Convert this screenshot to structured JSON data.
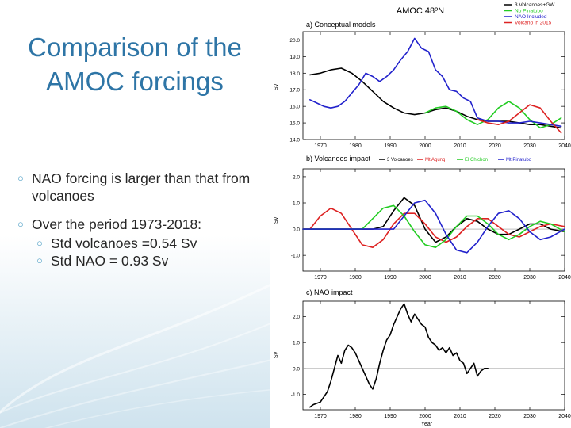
{
  "slide": {
    "title_line1": "Comparison of the",
    "title_line2": "AMOC forcings",
    "bullets": [
      {
        "text": "NAO forcing is larger than that from volcanoes"
      },
      {
        "text": "Over the period 1973-2018:"
      }
    ],
    "sub_bullets": [
      {
        "text": "Std volcanoes =0.54 Sv"
      },
      {
        "text": "Std NAO = 0.93 Sv"
      }
    ]
  },
  "figure": {
    "title": "AMOC 48ºN",
    "xlabel": "Year",
    "legend": [
      {
        "label": "3 Volcanoes+GW",
        "color": "#000000"
      },
      {
        "label": "No Pinatubo",
        "color": "#22cc22"
      },
      {
        "label": "NAO Included",
        "color": "#2222cc"
      },
      {
        "label": "Volcano in 2015",
        "color": "#dd2222"
      }
    ],
    "panel_b_legend": [
      {
        "label": "3 Volcanoes",
        "color": "#000000"
      },
      {
        "label": "Mt Agung",
        "color": "#dd2222"
      },
      {
        "label": "El Chichon",
        "color": "#22cc22"
      },
      {
        "label": "Mt Pinatubo",
        "color": "#2222cc"
      }
    ]
  },
  "chart_data": [
    {
      "type": "line",
      "title": "a) Conceptual models",
      "xlabel": "",
      "ylabel": "Sv",
      "xlim": [
        1965,
        2040
      ],
      "ylim": [
        14.0,
        20.5
      ],
      "xticks": [
        "1970",
        "1980",
        "1990",
        "2000",
        "2010",
        "2020",
        "2030",
        "2040"
      ],
      "yticks": [
        "14.0",
        "15.0",
        "16.0",
        "17.0",
        "18.0",
        "19.0",
        "20.0"
      ],
      "series": [
        {
          "name": "3 Volcanoes+GW",
          "color": "#000000",
          "x": [
            1967,
            1970,
            1973,
            1976,
            1979,
            1982,
            1985,
            1988,
            1991,
            1994,
            1997,
            2000,
            2003,
            2006,
            2009,
            2012,
            2015,
            2018,
            2021,
            2024,
            2027,
            2030,
            2033,
            2036,
            2039
          ],
          "y": [
            17.9,
            18.0,
            18.2,
            18.3,
            18.0,
            17.5,
            16.9,
            16.3,
            15.9,
            15.6,
            15.5,
            15.6,
            15.8,
            15.9,
            15.7,
            15.4,
            15.2,
            15.1,
            15.1,
            15.1,
            15.0,
            14.9,
            14.9,
            14.8,
            14.7
          ]
        },
        {
          "name": "No Pinatubo",
          "color": "#22cc22",
          "x": [
            2000,
            2003,
            2006,
            2009,
            2012,
            2015,
            2018,
            2021,
            2024,
            2027,
            2030,
            2033,
            2036,
            2039
          ],
          "y": [
            15.6,
            15.9,
            16.0,
            15.7,
            15.2,
            14.9,
            15.2,
            15.9,
            16.3,
            15.9,
            15.2,
            14.7,
            14.9,
            15.3
          ]
        },
        {
          "name": "NAO Included",
          "color": "#2222cc",
          "x": [
            1967,
            1969,
            1971,
            1973,
            1975,
            1977,
            1979,
            1981,
            1983,
            1985,
            1987,
            1989,
            1991,
            1993,
            1995,
            1997,
            1999,
            2001,
            2003,
            2005,
            2007,
            2009,
            2011,
            2013,
            2015,
            2018,
            2021,
            2024,
            2027,
            2030,
            2033,
            2036,
            2039
          ],
          "y": [
            16.4,
            16.2,
            16.0,
            15.9,
            16.0,
            16.3,
            16.8,
            17.3,
            18.0,
            17.8,
            17.5,
            17.8,
            18.2,
            18.8,
            19.3,
            20.1,
            19.5,
            19.3,
            18.2,
            17.8,
            17.0,
            16.9,
            16.5,
            16.3,
            15.3,
            15.1,
            15.1,
            15.0,
            15.0,
            15.1,
            15.0,
            14.9,
            14.8
          ]
        },
        {
          "name": "Volcano in 2015",
          "color": "#dd2222",
          "x": [
            2015,
            2018,
            2021,
            2024,
            2027,
            2030,
            2033,
            2036,
            2039
          ],
          "y": [
            15.2,
            15.0,
            14.9,
            15.1,
            15.6,
            16.1,
            15.9,
            15.1,
            14.4
          ]
        }
      ]
    },
    {
      "type": "line",
      "title": "b) Volcanoes impact",
      "xlabel": "",
      "ylabel": "Sv",
      "xlim": [
        1965,
        2040
      ],
      "ylim": [
        -1.6,
        2.3
      ],
      "xticks": [
        "1970",
        "1980",
        "1990",
        "2000",
        "2010",
        "2020",
        "2030",
        "2040"
      ],
      "yticks": [
        "-1.0",
        "0.0",
        "1.0",
        "2.0"
      ],
      "series": [
        {
          "name": "3 Volcanoes",
          "color": "#000000",
          "x": [
            1965,
            1985,
            1988,
            1991,
            1994,
            1997,
            2000,
            2003,
            2006,
            2009,
            2012,
            2015,
            2018,
            2021,
            2024,
            2027,
            2030,
            2033,
            2036,
            2040
          ],
          "y": [
            0.0,
            0.0,
            0.1,
            0.7,
            1.2,
            0.9,
            0.0,
            -0.5,
            -0.3,
            0.1,
            0.4,
            0.3,
            0.0,
            -0.2,
            -0.2,
            0.0,
            0.2,
            0.2,
            0.0,
            -0.1
          ]
        },
        {
          "name": "Mt Agung",
          "color": "#dd2222",
          "x": [
            1965,
            1967,
            1970,
            1973,
            1976,
            1979,
            1982,
            1985,
            1988,
            1991,
            1994,
            1997,
            2000,
            2003,
            2006,
            2009,
            2012,
            2015,
            2018,
            2021,
            2024,
            2027,
            2030,
            2033,
            2036,
            2040
          ],
          "y": [
            0.0,
            0.0,
            0.5,
            0.8,
            0.6,
            0.0,
            -0.6,
            -0.7,
            -0.4,
            0.2,
            0.6,
            0.6,
            0.2,
            -0.3,
            -0.5,
            -0.3,
            0.1,
            0.4,
            0.4,
            0.1,
            -0.2,
            -0.3,
            -0.1,
            0.1,
            0.2,
            0.1
          ]
        },
        {
          "name": "El Chichon",
          "color": "#22cc22",
          "x": [
            1965,
            1982,
            1985,
            1988,
            1991,
            1994,
            1997,
            2000,
            2003,
            2006,
            2009,
            2012,
            2015,
            2018,
            2021,
            2024,
            2027,
            2030,
            2033,
            2036,
            2040
          ],
          "y": [
            0.0,
            0.0,
            0.4,
            0.8,
            0.9,
            0.5,
            -0.1,
            -0.6,
            -0.7,
            -0.4,
            0.1,
            0.5,
            0.5,
            0.2,
            -0.2,
            -0.4,
            -0.2,
            0.1,
            0.3,
            0.2,
            -0.1
          ]
        },
        {
          "name": "Mt Pinatubo",
          "color": "#2222cc",
          "x": [
            1965,
            1991,
            1994,
            1997,
            2000,
            2003,
            2006,
            2009,
            2012,
            2015,
            2018,
            2021,
            2024,
            2027,
            2030,
            2033,
            2036,
            2040
          ],
          "y": [
            0.0,
            0.0,
            0.5,
            1.0,
            1.1,
            0.6,
            -0.2,
            -0.8,
            -0.9,
            -0.5,
            0.1,
            0.6,
            0.7,
            0.4,
            -0.1,
            -0.4,
            -0.3,
            0.0
          ]
        }
      ]
    },
    {
      "type": "line",
      "title": "c) NAO impact",
      "xlabel": "Year",
      "ylabel": "Sv",
      "xlim": [
        1965,
        2040
      ],
      "ylim": [
        -1.6,
        2.6
      ],
      "xticks": [
        "1970",
        "1980",
        "1990",
        "2000",
        "2010",
        "2020",
        "2030",
        "2040"
      ],
      "yticks": [
        "-1.0",
        "0.0",
        "1.0",
        "2.0"
      ],
      "series": [
        {
          "name": "NAO",
          "color": "#000000",
          "x": [
            1967,
            1968,
            1970,
            1972,
            1973,
            1974,
            1975,
            1976,
            1977,
            1978,
            1979,
            1980,
            1981,
            1982,
            1983,
            1984,
            1985,
            1986,
            1987,
            1988,
            1989,
            1990,
            1991,
            1992,
            1993,
            1994,
            1995,
            1996,
            1997,
            1998,
            1999,
            2000,
            2001,
            2002,
            2003,
            2004,
            2005,
            2006,
            2007,
            2008,
            2009,
            2010,
            2011,
            2012,
            2013,
            2014,
            2015,
            2016,
            2017,
            2018
          ],
          "y": [
            -1.5,
            -1.4,
            -1.3,
            -0.9,
            -0.5,
            0.0,
            0.5,
            0.2,
            0.7,
            0.9,
            0.8,
            0.6,
            0.3,
            0.0,
            -0.3,
            -0.6,
            -0.8,
            -0.4,
            0.2,
            0.7,
            1.1,
            1.3,
            1.7,
            2.0,
            2.3,
            2.5,
            2.1,
            1.8,
            2.1,
            1.9,
            1.7,
            1.6,
            1.2,
            1.0,
            0.9,
            0.7,
            0.8,
            0.6,
            0.8,
            0.5,
            0.6,
            0.3,
            0.2,
            -0.2,
            0.0,
            0.2,
            -0.3,
            -0.1,
            0.0,
            0.0
          ]
        }
      ]
    }
  ]
}
